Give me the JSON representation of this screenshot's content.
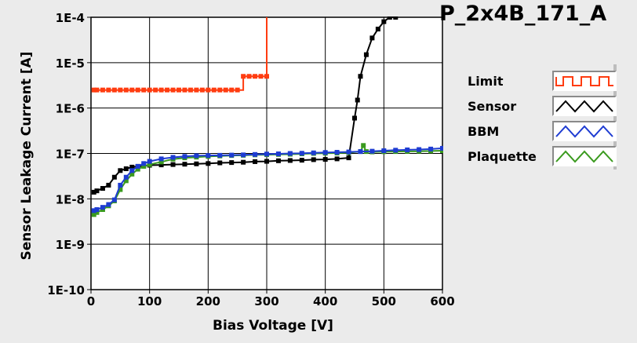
{
  "title": "P_2x4B_171_A",
  "chart_data": {
    "type": "line",
    "title": "P_2x4B_171_A",
    "xlabel": "Bias Voltage [V]",
    "ylabel": "Sensor Leakage Current [A]",
    "xlim": [
      0,
      600
    ],
    "ylim": [
      1e-10,
      0.0001
    ],
    "yscale": "log",
    "grid": true,
    "legend_position": "right",
    "x_ticks": [
      0,
      100,
      200,
      300,
      400,
      500,
      600
    ],
    "x_tick_labels": [
      "0",
      "100",
      "200",
      "300",
      "400",
      "500",
      "600"
    ],
    "y_ticks": [
      1e-10,
      1e-09,
      1e-08,
      1e-07,
      1e-06,
      1e-05,
      0.0001
    ],
    "y_tick_labels": [
      "1E-10",
      "1E-9",
      "1E-8",
      "1E-7",
      "1E-6",
      "1E-5",
      "1E-4"
    ],
    "series": [
      {
        "name": "Limit",
        "color": "#ff3c10",
        "style": "step",
        "icon": "square-wave",
        "x": [
          5,
          10,
          20,
          30,
          40,
          50,
          60,
          70,
          80,
          90,
          100,
          110,
          120,
          130,
          140,
          150,
          160,
          170,
          180,
          190,
          200,
          210,
          220,
          230,
          240,
          250,
          260,
          270,
          280,
          290,
          300
        ],
        "y": [
          2.5e-06,
          2.5e-06,
          2.5e-06,
          2.5e-06,
          2.5e-06,
          2.5e-06,
          2.5e-06,
          2.5e-06,
          2.5e-06,
          2.5e-06,
          2.5e-06,
          2.5e-06,
          2.5e-06,
          2.5e-06,
          2.5e-06,
          2.5e-06,
          2.5e-06,
          2.5e-06,
          2.5e-06,
          2.5e-06,
          2.5e-06,
          2.5e-06,
          2.5e-06,
          2.5e-06,
          2.5e-06,
          2.5e-06,
          5e-06,
          5e-06,
          5e-06,
          5e-06,
          5e-06
        ],
        "end_x": 300,
        "end_y": 0.0001
      },
      {
        "name": "Sensor",
        "color": "#000000",
        "style": "line",
        "icon": "triangle-wave",
        "x": [
          5,
          10,
          20,
          30,
          40,
          50,
          60,
          70,
          80,
          90,
          100,
          120,
          140,
          160,
          180,
          200,
          220,
          240,
          260,
          280,
          300,
          320,
          340,
          360,
          380,
          400,
          420,
          440,
          450,
          455,
          460,
          470,
          480,
          490,
          500,
          510,
          520
        ],
        "y": [
          1.4e-08,
          1.5e-08,
          1.7e-08,
          2e-08,
          3e-08,
          4.2e-08,
          4.6e-08,
          5e-08,
          5.2e-08,
          5.3e-08,
          5.5e-08,
          5.6e-08,
          5.7e-08,
          5.8e-08,
          5.9e-08,
          6e-08,
          6.2e-08,
          6.3e-08,
          6.4e-08,
          6.6e-08,
          6.7e-08,
          6.9e-08,
          7e-08,
          7.1e-08,
          7.3e-08,
          7.4e-08,
          7.6e-08,
          8e-08,
          6e-07,
          1.5e-06,
          5e-06,
          1.5e-05,
          3.5e-05,
          5.5e-05,
          8e-05,
          0.0001,
          0.0001
        ]
      },
      {
        "name": "BBM",
        "color": "#1e3cd2",
        "style": "line",
        "icon": "triangle-wave",
        "x": [
          5,
          10,
          20,
          30,
          40,
          50,
          60,
          70,
          80,
          90,
          100,
          120,
          140,
          160,
          180,
          200,
          220,
          240,
          260,
          280,
          300,
          320,
          340,
          360,
          380,
          400,
          420,
          440,
          460,
          480,
          500,
          520,
          540,
          560,
          580,
          600
        ],
        "y": [
          5.5e-09,
          5.8e-09,
          6.5e-09,
          7.5e-09,
          9.5e-09,
          2e-08,
          3e-08,
          4.2e-08,
          5.2e-08,
          6e-08,
          6.7e-08,
          7.6e-08,
          8.2e-08,
          8.6e-08,
          8.9e-08,
          9e-08,
          9.1e-08,
          9.2e-08,
          9.3e-08,
          9.5e-08,
          9.7e-08,
          9.8e-08,
          1e-07,
          1.01e-07,
          1.03e-07,
          1.05e-07,
          1.06e-07,
          1.08e-07,
          1.1e-07,
          1.12e-07,
          1.15e-07,
          1.18e-07,
          1.2e-07,
          1.22e-07,
          1.25e-07,
          1.3e-07
        ]
      },
      {
        "name": "Plaquette",
        "color": "#3a9a1e",
        "style": "line",
        "icon": "triangle-wave",
        "x": [
          5,
          10,
          20,
          30,
          40,
          50,
          60,
          70,
          80,
          90,
          100,
          120,
          140,
          160,
          180,
          200,
          220,
          240,
          260,
          280,
          300,
          320,
          340,
          360,
          380,
          400,
          420,
          440,
          460,
          465,
          470,
          480,
          500,
          520,
          540,
          560,
          580,
          600
        ],
        "y": [
          4.5e-09,
          5e-09,
          5.8e-09,
          7e-09,
          9e-09,
          1.6e-08,
          2.5e-08,
          3.5e-08,
          4.5e-08,
          5.2e-08,
          5.7e-08,
          6.5e-08,
          7.5e-08,
          8e-08,
          8.3e-08,
          8.6e-08,
          8.8e-08,
          9e-08,
          9.1e-08,
          9.3e-08,
          9.4e-08,
          9.5e-08,
          9.6e-08,
          9.8e-08,
          1e-07,
          1.01e-07,
          1.02e-07,
          1.04e-07,
          1.1e-07,
          1.5e-07,
          1.1e-07,
          1.08e-07,
          1.09e-07,
          1.1e-07,
          1.11e-07,
          1.12e-07,
          1.13e-07,
          1.15e-07
        ]
      }
    ]
  }
}
